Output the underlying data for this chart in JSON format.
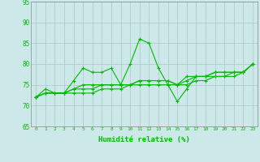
{
  "xlabel": "Humidité relative (%)",
  "xlim": [
    -0.5,
    23.5
  ],
  "ylim": [
    65,
    95
  ],
  "yticks": [
    65,
    70,
    75,
    80,
    85,
    90,
    95
  ],
  "xticks": [
    0,
    1,
    2,
    3,
    4,
    5,
    6,
    7,
    8,
    9,
    10,
    11,
    12,
    13,
    14,
    15,
    16,
    17,
    18,
    19,
    20,
    21,
    22,
    23
  ],
  "bg_color": "#cce8e8",
  "grid_color": "#aac8c8",
  "line_color": "#00bb00",
  "series": [
    [
      72,
      74,
      73,
      73,
      76,
      79,
      78,
      78,
      79,
      75,
      80,
      86,
      85,
      79,
      75,
      71,
      74,
      77,
      77,
      78,
      78,
      78,
      78,
      80
    ],
    [
      72,
      73,
      73,
      73,
      73,
      73,
      73,
      74,
      74,
      74,
      75,
      75,
      75,
      75,
      75,
      75,
      75,
      76,
      76,
      77,
      77,
      77,
      78,
      80
    ],
    [
      72,
      73,
      73,
      73,
      74,
      74,
      74,
      75,
      75,
      75,
      75,
      76,
      76,
      76,
      76,
      75,
      76,
      77,
      77,
      77,
      77,
      78,
      78,
      80
    ],
    [
      72,
      73,
      73,
      73,
      74,
      75,
      75,
      75,
      75,
      75,
      75,
      76,
      76,
      76,
      76,
      75,
      77,
      77,
      77,
      78,
      78,
      78,
      78,
      80
    ]
  ]
}
